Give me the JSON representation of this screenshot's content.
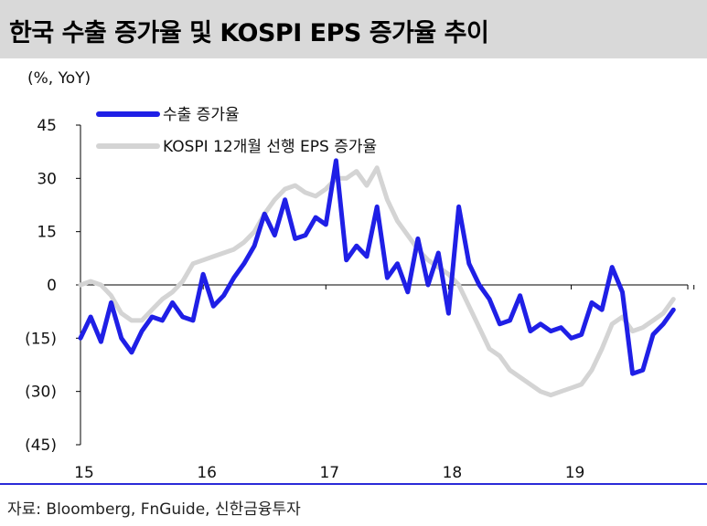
{
  "title": "한국 수출 증가율 및 KOSPI EPS 증가율 추이",
  "source": "자료: Bloomberg, FnGuide, 신한금융투자",
  "colors": {
    "export": "#1f1fe6",
    "eps": "#d4d4d4",
    "title_bg": "#d9d9d9",
    "rule": "#2b2bd8"
  },
  "chart_data": {
    "type": "line",
    "ylabel": "(%, YoY)",
    "ylim": [
      -45,
      45
    ],
    "yticks": [
      45,
      30,
      15,
      0,
      -15,
      -30,
      -45
    ],
    "ytick_labels": [
      "45",
      "30",
      "15",
      "0",
      "(15)",
      "(30)",
      "(45)"
    ],
    "xlim": [
      2015.0,
      2019.95
    ],
    "xticks": [
      2015,
      2016,
      2017,
      2018,
      2019
    ],
    "xtick_labels": [
      "15",
      "16",
      "17",
      "18",
      "19"
    ],
    "legend_position": "top-left",
    "series": [
      {
        "name": "수출 증가율",
        "key": "export",
        "points": [
          [
            2015.0,
            -15
          ],
          [
            2015.083,
            -9
          ],
          [
            2015.167,
            -16
          ],
          [
            2015.25,
            -5
          ],
          [
            2015.333,
            -15
          ],
          [
            2015.417,
            -19
          ],
          [
            2015.5,
            -13
          ],
          [
            2015.583,
            -9
          ],
          [
            2015.667,
            -10
          ],
          [
            2015.75,
            -5
          ],
          [
            2015.833,
            -9
          ],
          [
            2015.917,
            -10
          ],
          [
            2016.0,
            3
          ],
          [
            2016.083,
            -6
          ],
          [
            2016.167,
            -3
          ],
          [
            2016.25,
            2
          ],
          [
            2016.333,
            6
          ],
          [
            2016.417,
            11
          ],
          [
            2016.5,
            20
          ],
          [
            2016.583,
            14
          ],
          [
            2016.667,
            24
          ],
          [
            2016.75,
            13
          ],
          [
            2016.833,
            14
          ],
          [
            2016.917,
            19
          ],
          [
            2017.0,
            17
          ],
          [
            2017.083,
            35
          ],
          [
            2017.167,
            7
          ],
          [
            2017.25,
            11
          ],
          [
            2017.333,
            8
          ],
          [
            2017.417,
            22
          ],
          [
            2017.5,
            2
          ],
          [
            2017.583,
            6
          ],
          [
            2017.667,
            -2
          ],
          [
            2017.75,
            13
          ],
          [
            2017.833,
            0
          ],
          [
            2017.917,
            9
          ],
          [
            2018.0,
            -8
          ],
          [
            2018.083,
            22
          ],
          [
            2018.167,
            6
          ],
          [
            2018.25,
            0
          ],
          [
            2018.333,
            -4
          ],
          [
            2018.417,
            -11
          ],
          [
            2018.5,
            -10
          ],
          [
            2018.583,
            -3
          ],
          [
            2018.667,
            -13
          ],
          [
            2018.75,
            -11
          ],
          [
            2018.833,
            -13
          ],
          [
            2018.917,
            -12
          ],
          [
            2019.0,
            -15
          ],
          [
            2019.083,
            -14
          ],
          [
            2019.167,
            -5
          ],
          [
            2019.25,
            -7
          ],
          [
            2019.333,
            5
          ],
          [
            2019.417,
            -2
          ],
          [
            2019.5,
            -25
          ],
          [
            2019.583,
            -24
          ],
          [
            2019.667,
            -14
          ],
          [
            2019.75,
            -11
          ],
          [
            2019.833,
            -7
          ]
        ]
      },
      {
        "name": "KOSPI 12개월 선행 EPS 증가율",
        "key": "eps",
        "points": [
          [
            2015.0,
            0
          ],
          [
            2015.083,
            1
          ],
          [
            2015.167,
            0
          ],
          [
            2015.25,
            -3
          ],
          [
            2015.333,
            -8
          ],
          [
            2015.417,
            -10
          ],
          [
            2015.5,
            -10
          ],
          [
            2015.583,
            -7
          ],
          [
            2015.667,
            -4
          ],
          [
            2015.75,
            -2
          ],
          [
            2015.833,
            1
          ],
          [
            2015.917,
            6
          ],
          [
            2016.0,
            7
          ],
          [
            2016.083,
            8
          ],
          [
            2016.167,
            9
          ],
          [
            2016.25,
            10
          ],
          [
            2016.333,
            12
          ],
          [
            2016.417,
            15
          ],
          [
            2016.5,
            20
          ],
          [
            2016.583,
            24
          ],
          [
            2016.667,
            27
          ],
          [
            2016.75,
            28
          ],
          [
            2016.833,
            26
          ],
          [
            2016.917,
            25
          ],
          [
            2017.0,
            27
          ],
          [
            2017.083,
            30
          ],
          [
            2017.167,
            30
          ],
          [
            2017.25,
            32
          ],
          [
            2017.333,
            28
          ],
          [
            2017.417,
            33
          ],
          [
            2017.5,
            24
          ],
          [
            2017.583,
            18
          ],
          [
            2017.667,
            14
          ],
          [
            2017.75,
            10
          ],
          [
            2017.833,
            7
          ],
          [
            2017.917,
            5
          ],
          [
            2018.0,
            3
          ],
          [
            2018.083,
            0
          ],
          [
            2018.167,
            -6
          ],
          [
            2018.25,
            -12
          ],
          [
            2018.333,
            -18
          ],
          [
            2018.417,
            -20
          ],
          [
            2018.5,
            -24
          ],
          [
            2018.583,
            -26
          ],
          [
            2018.667,
            -28
          ],
          [
            2018.75,
            -30
          ],
          [
            2018.833,
            -31
          ],
          [
            2018.917,
            -30
          ],
          [
            2019.0,
            -29
          ],
          [
            2019.083,
            -28
          ],
          [
            2019.167,
            -24
          ],
          [
            2019.25,
            -18
          ],
          [
            2019.333,
            -11
          ],
          [
            2019.417,
            -9
          ],
          [
            2019.5,
            -13
          ],
          [
            2019.583,
            -12
          ],
          [
            2019.667,
            -10
          ],
          [
            2019.75,
            -8
          ],
          [
            2019.833,
            -4
          ]
        ]
      }
    ]
  }
}
